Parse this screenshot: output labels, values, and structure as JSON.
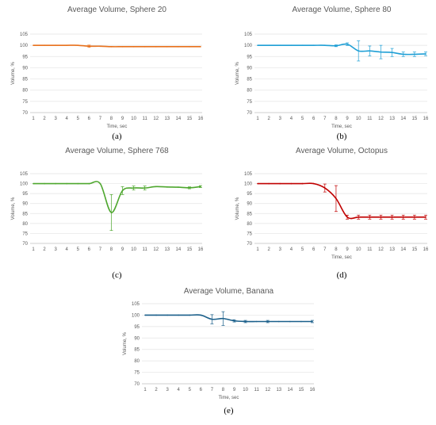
{
  "chart_data": [
    {
      "type": "line",
      "panel": "(a)",
      "title": "Average Volume, Sphere 20",
      "xlabel": "Time, sec",
      "ylabel": "Volume, %",
      "ylim": [
        70,
        105
      ],
      "yticks": [
        70,
        75,
        80,
        85,
        90,
        95,
        100,
        105
      ],
      "x": [
        1,
        2,
        3,
        4,
        5,
        6,
        7,
        8,
        9,
        10,
        11,
        12,
        13,
        14,
        15,
        16
      ],
      "color": "#e8711c",
      "series": [
        {
          "values": [
            100,
            100,
            100,
            100,
            100,
            99.6,
            99.6,
            99.4,
            99.4,
            99.4,
            99.4,
            99.4,
            99.4,
            99.4,
            99.4,
            99.4
          ],
          "errors": [
            0,
            0,
            0,
            0,
            0,
            0.5,
            0,
            0,
            0,
            0,
            0,
            0,
            0,
            0,
            0,
            0
          ]
        }
      ]
    },
    {
      "type": "line",
      "panel": "(b)",
      "title": "Average Volume, Sphere 80",
      "xlabel": "Time, sec",
      "ylabel": "Volume, %",
      "ylim": [
        70,
        105
      ],
      "yticks": [
        70,
        75,
        80,
        85,
        90,
        95,
        100,
        105
      ],
      "x": [
        1,
        2,
        3,
        4,
        5,
        6,
        7,
        8,
        9,
        10,
        11,
        12,
        13,
        14,
        15,
        16
      ],
      "color": "#1f9fd5",
      "series": [
        {
          "values": [
            100,
            100,
            100,
            100,
            100,
            100,
            100,
            99.8,
            100.5,
            97.5,
            97.5,
            97,
            96.8,
            96,
            96,
            96.2
          ],
          "errors": [
            0,
            0,
            0,
            0,
            0,
            0,
            0,
            0.4,
            0.6,
            4.5,
            2.2,
            3,
            1.8,
            1,
            1,
            0.8
          ]
        }
      ]
    },
    {
      "type": "line",
      "panel": "(c)",
      "title": "Average Volume, Sphere 768",
      "xlabel": "",
      "ylabel": "Volume, %",
      "ylim": [
        70,
        105
      ],
      "yticks": [
        70,
        75,
        80,
        85,
        90,
        95,
        100,
        105
      ],
      "x": [
        1,
        2,
        3,
        4,
        5,
        6,
        7,
        8,
        9,
        10,
        11,
        12,
        13,
        14,
        15,
        16
      ],
      "color": "#4ea72e",
      "series": [
        {
          "values": [
            100,
            100,
            100,
            100,
            100,
            100,
            100,
            85.5,
            96.5,
            97.8,
            97.8,
            98.5,
            98.3,
            98.2,
            97.9,
            98.5
          ],
          "errors": [
            0,
            0,
            0,
            0,
            0,
            0,
            0,
            9,
            2,
            1,
            1,
            0,
            0,
            0,
            0.5,
            0.5
          ]
        }
      ]
    },
    {
      "type": "line",
      "panel": "(d)",
      "title": "Average Volume, Octopus",
      "xlabel": "Time, sec",
      "ylabel": "Volume, %",
      "ylim": [
        70,
        105
      ],
      "yticks": [
        70,
        75,
        80,
        85,
        90,
        95,
        100,
        105
      ],
      "x": [
        1,
        2,
        3,
        4,
        5,
        6,
        7,
        8,
        9,
        10,
        11,
        12,
        13,
        14,
        15,
        16
      ],
      "color": "#c00000",
      "series": [
        {
          "values": [
            100,
            100,
            100,
            100,
            100,
            100,
            97.8,
            92.5,
            83.2,
            83.2,
            83.2,
            83.2,
            83.2,
            83.2,
            83.2,
            83.2
          ],
          "errors": [
            0,
            0,
            0,
            0,
            0,
            0,
            2,
            6.5,
            1,
            1,
            1,
            1,
            1,
            1,
            1,
            1
          ]
        }
      ]
    },
    {
      "type": "line",
      "panel": "(e)",
      "title": "Average Volume, Banana",
      "xlabel": "Time, sec",
      "ylabel": "Volume, %",
      "ylim": [
        70,
        105
      ],
      "yticks": [
        70,
        75,
        80,
        85,
        90,
        95,
        100,
        105
      ],
      "x": [
        1,
        2,
        3,
        4,
        5,
        6,
        7,
        8,
        9,
        10,
        11,
        12,
        13,
        14,
        15,
        16
      ],
      "color": "#1a5f8a",
      "series": [
        {
          "values": [
            100,
            100,
            100,
            100,
            100,
            100,
            98.2,
            98.5,
            97.5,
            97.2,
            97.2,
            97.2,
            97.2,
            97.2,
            97.2,
            97.2
          ],
          "errors": [
            0,
            0,
            0,
            0,
            0,
            0,
            2,
            3,
            0.5,
            0.5,
            0,
            0.5,
            0,
            0,
            0,
            0.5
          ]
        }
      ]
    }
  ]
}
